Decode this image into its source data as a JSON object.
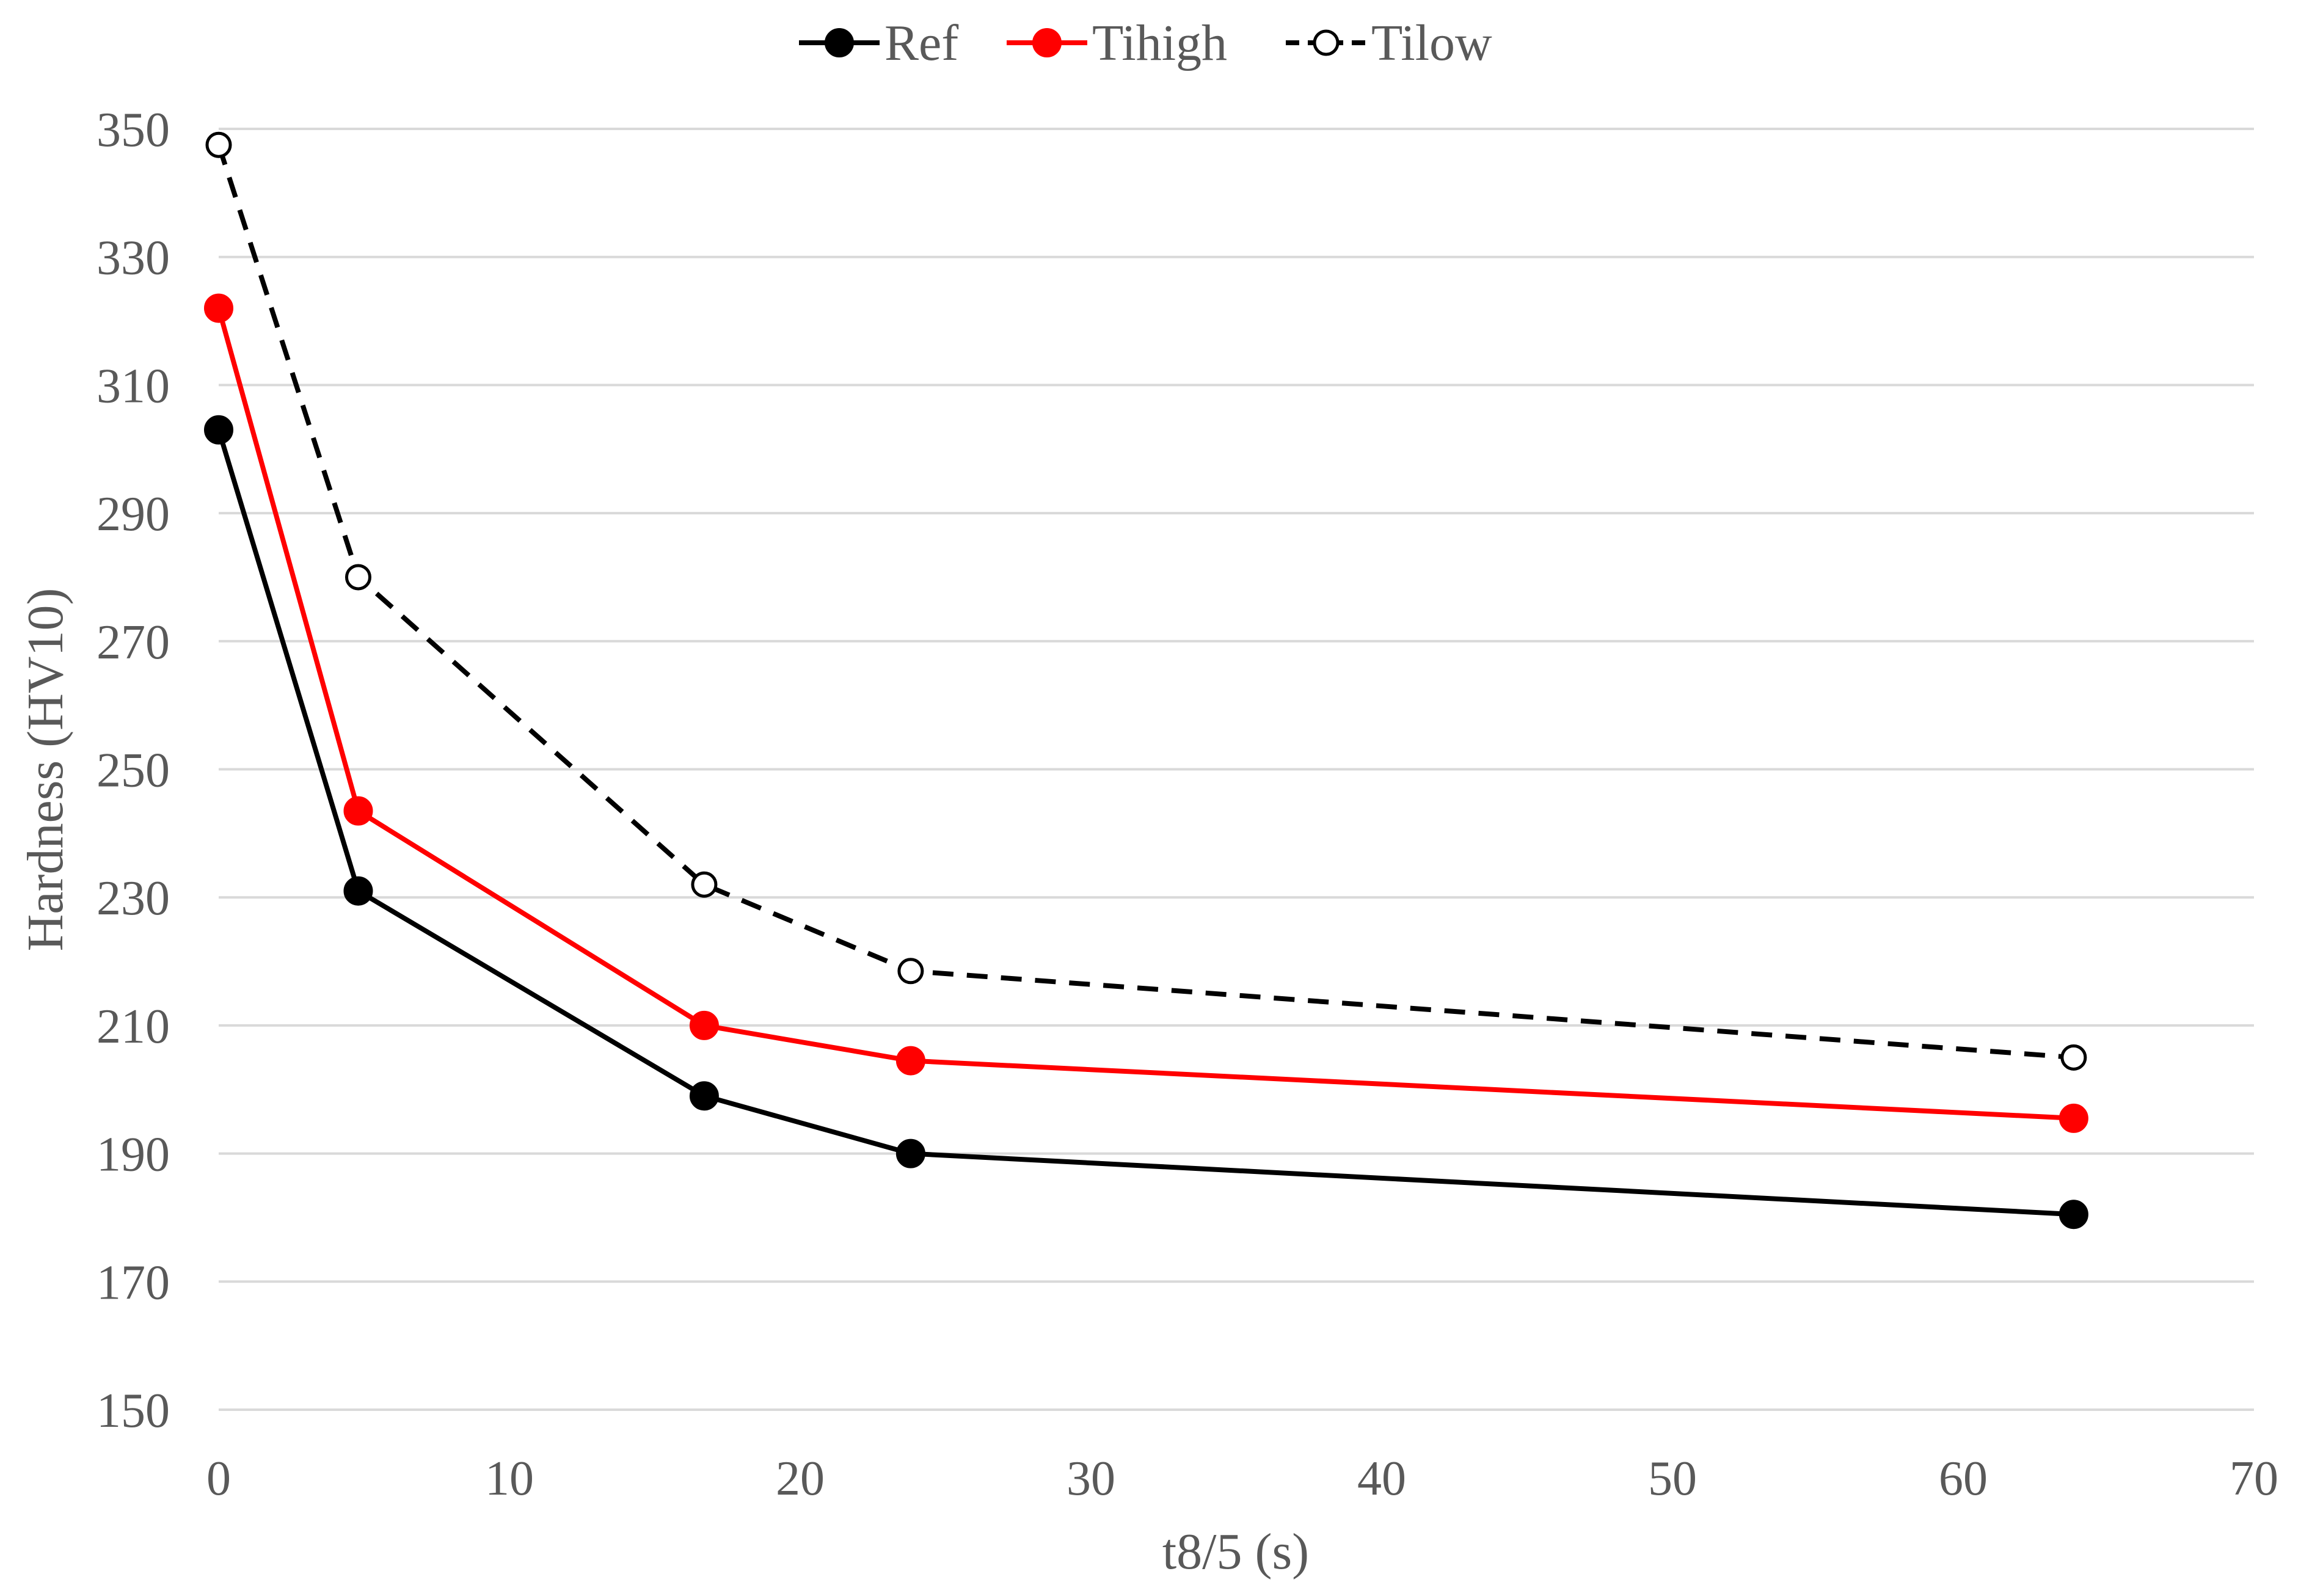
{
  "chart_data": {
    "type": "line",
    "title": "",
    "xlabel": "t8/5 (s)",
    "ylabel": "Hardness (HV10)",
    "xlim": [
      0,
      70
    ],
    "ylim": [
      150,
      350
    ],
    "xticks": [
      0,
      10,
      20,
      30,
      40,
      50,
      60,
      70
    ],
    "yticks": [
      150,
      170,
      190,
      210,
      230,
      250,
      270,
      290,
      310,
      330,
      350
    ],
    "xtick_labels": [
      "0",
      "10",
      "20",
      "30",
      "40",
      "50",
      "60",
      "70"
    ],
    "ytick_labels": [
      "150",
      "170",
      "190",
      "210",
      "230",
      "250",
      "270",
      "290",
      "310",
      "330",
      "350"
    ],
    "grid": "horizontal",
    "legend_position": "top-center",
    "series": [
      {
        "name": "Ref",
        "color": "#000000",
        "line_style": "solid",
        "marker": "filled-circle",
        "x": [
          0,
          4.8,
          16.7,
          23.8,
          63.8
        ],
        "y": [
          303,
          231,
          199,
          190,
          180.5
        ]
      },
      {
        "name": "Tihigh",
        "color": "#ff0000",
        "line_style": "solid",
        "marker": "filled-circle",
        "x": [
          0,
          4.8,
          16.7,
          23.8,
          63.8
        ],
        "y": [
          322,
          243.5,
          210,
          204.5,
          195.5
        ]
      },
      {
        "name": "Tilow",
        "color": "#000000",
        "line_style": "dashed",
        "marker": "open-circle",
        "x": [
          0,
          4.8,
          16.7,
          23.8,
          63.8
        ],
        "y": [
          347.5,
          280,
          232,
          218.5,
          205
        ]
      }
    ]
  }
}
